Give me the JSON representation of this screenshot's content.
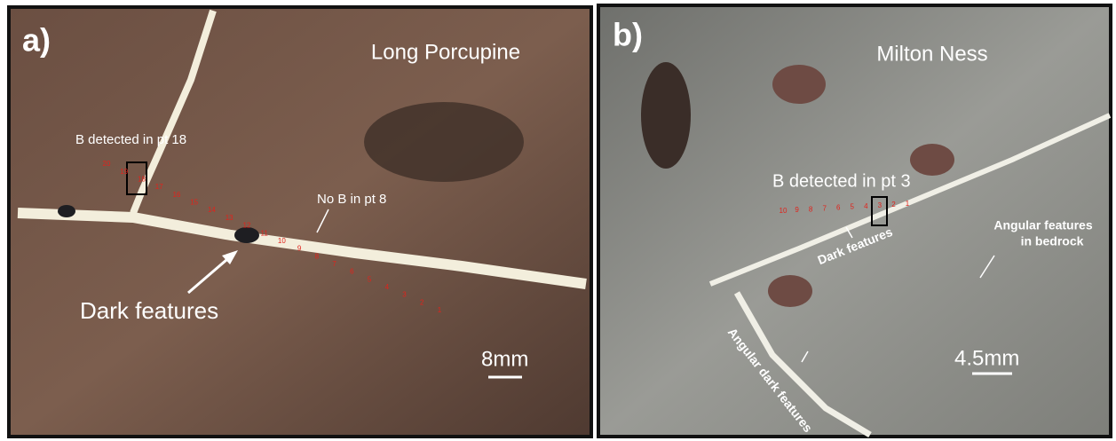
{
  "panel_a": {
    "label": "a)",
    "title": "Long Porcupine",
    "detection": "B detected in pt 18",
    "no_detection": "No B in pt 8",
    "feature": "Dark features",
    "scale": "8mm",
    "points": [
      "20",
      "19",
      "18",
      "17",
      "16",
      "15",
      "14",
      "13",
      "12",
      "11",
      "10",
      "9",
      "8",
      "7",
      "6",
      "5",
      "4",
      "3",
      "2",
      "1"
    ]
  },
  "panel_b": {
    "label": "b)",
    "title": "Milton Ness",
    "detection": "B detected in pt 3",
    "feature": "Dark features",
    "bedrock": [
      "Angular features",
      "in  bedrock"
    ],
    "scale": "4.5mm",
    "angular": "Angular dark features",
    "points": [
      "10",
      "9",
      "8",
      "7",
      "6",
      "5",
      "4",
      "3",
      "2",
      "1"
    ]
  }
}
